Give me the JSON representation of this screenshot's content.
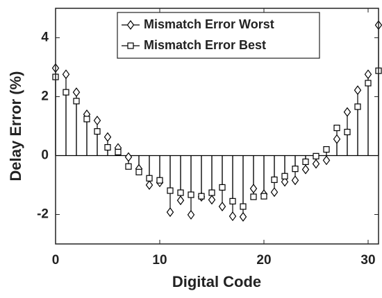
{
  "chart_data": {
    "type": "stem",
    "xlabel": "Digital Code",
    "ylabel": "Delay Error (%)",
    "x": [
      0,
      1,
      2,
      3,
      4,
      5,
      6,
      7,
      8,
      9,
      10,
      11,
      12,
      13,
      14,
      15,
      16,
      17,
      18,
      19,
      20,
      21,
      22,
      23,
      24,
      25,
      26,
      27,
      28,
      29,
      30,
      31
    ],
    "series": [
      {
        "name": "Mismatch Error Worst",
        "color": "#000000",
        "marker": "diamond",
        "values": [
          2.97,
          2.76,
          2.15,
          1.4,
          1.19,
          0.63,
          0.26,
          -0.05,
          -0.45,
          -1.0,
          -0.91,
          -1.92,
          -1.52,
          -2.01,
          -1.4,
          -1.5,
          -1.73,
          -2.06,
          -2.08,
          -1.12,
          -1.31,
          -1.24,
          -0.89,
          -0.84,
          -0.47,
          -0.28,
          -0.16,
          0.56,
          1.48,
          2.22,
          2.76,
          4.43
        ]
      },
      {
        "name": "Mismatch Error Best",
        "color": "#000000",
        "marker": "square",
        "values": [
          2.67,
          2.15,
          1.85,
          1.24,
          0.82,
          0.28,
          0.12,
          -0.37,
          -0.56,
          -0.77,
          -0.84,
          -1.19,
          -1.26,
          -1.33,
          -1.38,
          -1.26,
          -1.08,
          -1.55,
          -1.73,
          -1.4,
          -1.38,
          -0.82,
          -0.7,
          -0.45,
          -0.21,
          -0.02,
          0.21,
          0.94,
          0.8,
          1.66,
          2.46,
          2.88
        ]
      }
    ],
    "xlim": [
      0,
      31
    ],
    "xticks": [
      0,
      10,
      20,
      30
    ],
    "ylim": [
      -3,
      5
    ],
    "yticks": [
      -2,
      0,
      2,
      4
    ],
    "legend": "upper center",
    "grid": false
  }
}
